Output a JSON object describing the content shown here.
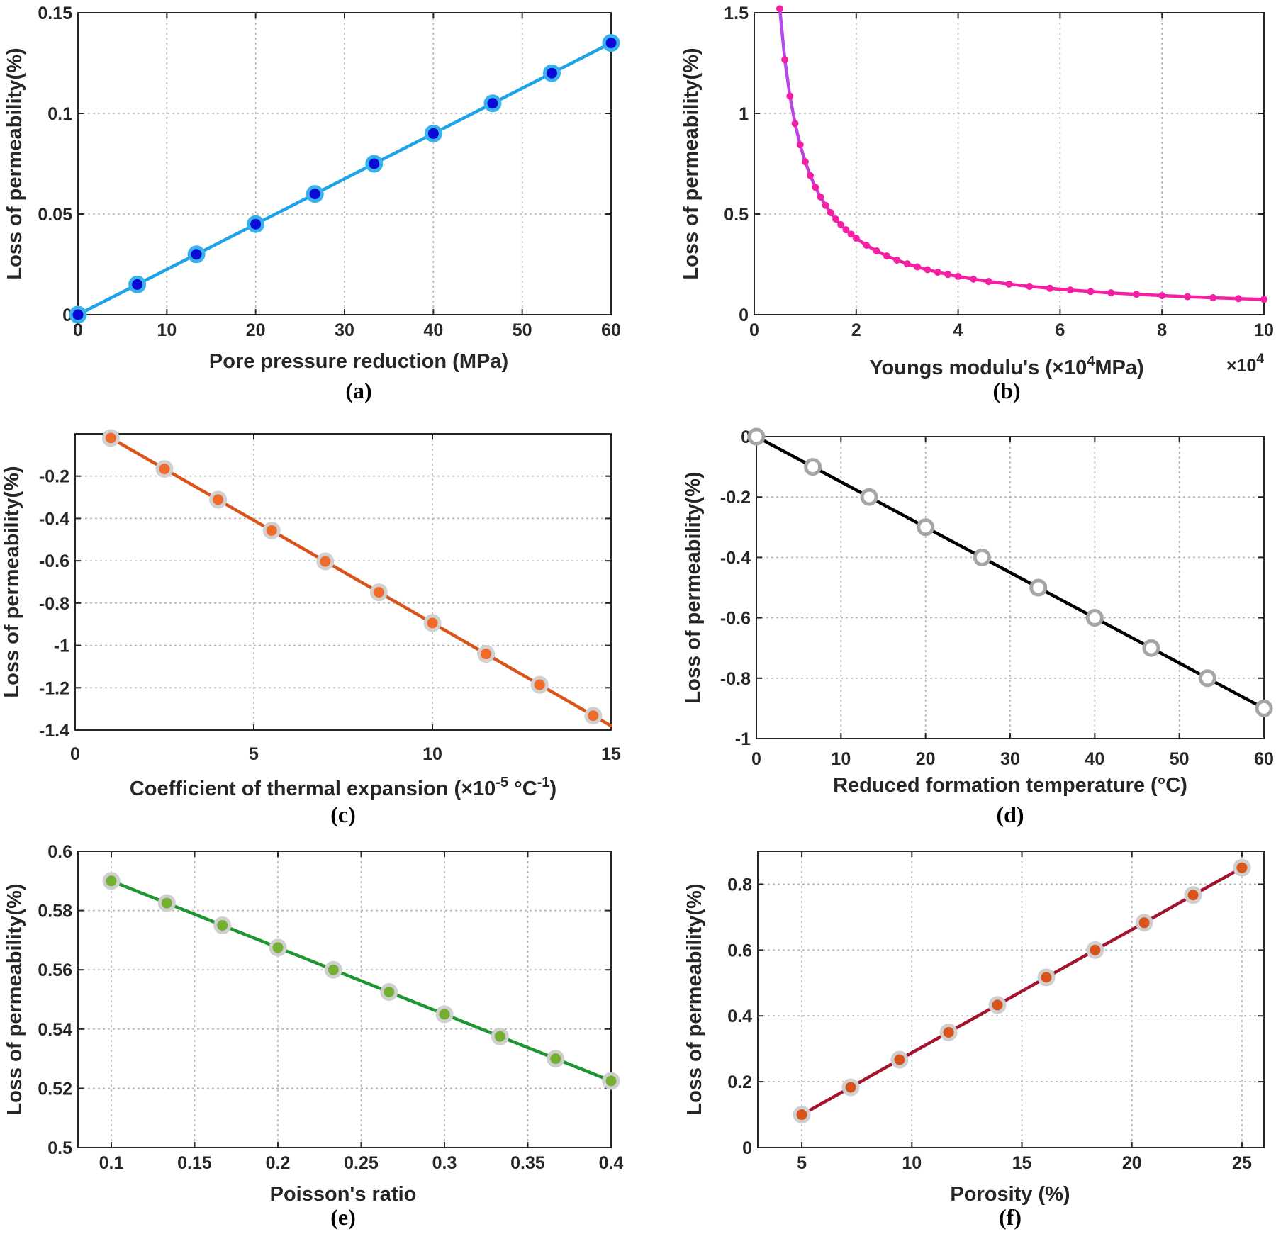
{
  "chart_data": [
    {
      "type": "line",
      "caption": "(a)",
      "xlabel": "Pore pressure reduction (MPa)",
      "ylabel": "Loss of permeability(%)",
      "xlim": [
        0,
        60
      ],
      "ylim": [
        0,
        0.15
      ],
      "xticks": [
        0,
        10,
        20,
        30,
        40,
        50,
        60
      ],
      "xtick_labels": [
        "0",
        "10",
        "20",
        "30",
        "40",
        "50",
        "60"
      ],
      "yticks": [
        0,
        0.05,
        0.1,
        0.15
      ],
      "ytick_labels": [
        "0",
        "0.05",
        "0.1",
        "0.15"
      ],
      "grid": true,
      "line_color": "#1fa3e8",
      "marker_face": "#0a0ad6",
      "marker_edge": "#37b2ec",
      "x": [
        0,
        6.67,
        13.33,
        20,
        26.67,
        33.33,
        40,
        46.67,
        53.33,
        60
      ],
      "y": [
        0,
        0.015,
        0.03,
        0.045,
        0.06,
        0.075,
        0.09,
        0.105,
        0.12,
        0.135
      ]
    },
    {
      "type": "line",
      "caption": "(b)",
      "xlabel_main": "Youngs modulu's (×10",
      "xlabel_sup": "4",
      "xlabel_tail": "MPa)",
      "x_multiplier_main": "×10",
      "x_multiplier_sup": "4",
      "ylabel": "Loss of permeability(%)",
      "xlim": [
        0,
        10
      ],
      "ylim": [
        0,
        1.5
      ],
      "xticks": [
        0,
        2,
        4,
        6,
        8,
        10
      ],
      "xtick_labels": [
        "0",
        "2",
        "4",
        "6",
        "8",
        "10"
      ],
      "yticks": [
        0,
        0.5,
        1,
        1.5
      ],
      "ytick_labels": [
        "0",
        "0.5",
        "1",
        "1.5"
      ],
      "grid": true,
      "line_color_start": "#b04cf0",
      "line_color_end": "#f51fa3",
      "marker_face": "#f51fa3",
      "curve": "y = 0.76 / x",
      "x": [
        0.5,
        0.6,
        0.7,
        0.8,
        0.9,
        1.0,
        1.1,
        1.2,
        1.3,
        1.4,
        1.5,
        1.6,
        1.7,
        1.8,
        1.9,
        2.0,
        2.2,
        2.4,
        2.6,
        2.8,
        3.0,
        3.2,
        3.4,
        3.6,
        3.8,
        4.0,
        4.3,
        4.6,
        5.0,
        5.4,
        5.8,
        6.2,
        6.6,
        7.0,
        7.5,
        8.0,
        8.5,
        9.0,
        9.5,
        10.0
      ],
      "y": [
        1.52,
        1.267,
        1.086,
        0.95,
        0.844,
        0.76,
        0.691,
        0.633,
        0.585,
        0.543,
        0.507,
        0.475,
        0.447,
        0.422,
        0.4,
        0.38,
        0.345,
        0.317,
        0.292,
        0.271,
        0.253,
        0.2375,
        0.2235,
        0.211,
        0.2,
        0.19,
        0.1767,
        0.1652,
        0.152,
        0.1407,
        0.131,
        0.1226,
        0.1152,
        0.1086,
        0.1013,
        0.095,
        0.0894,
        0.0844,
        0.08,
        0.076
      ]
    },
    {
      "type": "line",
      "caption": "(c)",
      "xlabel_main": "Coefficient of thermal expansion (×10",
      "xlabel_sup1": "-5",
      "xlabel_mid": " °C",
      "xlabel_sup2": "-1",
      "xlabel_tail": ")",
      "ylabel": "Loss of permeability(%)",
      "xlim": [
        0,
        15
      ],
      "ylim": [
        -1.4,
        0
      ],
      "xticks": [
        0,
        5,
        10,
        15
      ],
      "xtick_labels": [
        "0",
        "5",
        "10",
        "15"
      ],
      "yticks": [
        -1.4,
        -1.2,
        -1,
        -0.8,
        -0.6,
        -0.4,
        -0.2
      ],
      "ytick_labels": [
        "-1.4",
        "-1.2",
        "-1",
        "-0.8",
        "-0.6",
        "-0.4",
        "-0.2"
      ],
      "grid": true,
      "line_color": "#d9541a",
      "marker_face": "#f06a2a",
      "marker_edge": "#d0d0d0",
      "line_x": [
        1,
        15
      ],
      "line_y": [
        -0.02,
        -1.38
      ],
      "x": [
        1,
        2.5,
        4,
        5.5,
        7,
        8.5,
        10,
        11.5,
        13,
        14.5
      ],
      "y": [
        -0.02,
        -0.166,
        -0.311,
        -0.457,
        -0.603,
        -0.749,
        -0.894,
        -1.04,
        -1.186,
        -1.332
      ]
    },
    {
      "type": "line",
      "caption": "(d)",
      "xlabel": "Reduced formation temperature (°C)",
      "ylabel": "Loss of permeability(%)",
      "xlim": [
        0,
        60
      ],
      "ylim": [
        -1,
        0
      ],
      "xticks": [
        0,
        10,
        20,
        30,
        40,
        50,
        60
      ],
      "xtick_labels": [
        "0",
        "10",
        "20",
        "30",
        "40",
        "50",
        "60"
      ],
      "yticks": [
        -1,
        -0.8,
        -0.6,
        -0.4,
        -0.2,
        0
      ],
      "ytick_labels": [
        "-1",
        "-0.8",
        "-0.6",
        "-0.4",
        "-0.2",
        "0"
      ],
      "grid": true,
      "line_color": "#000000",
      "marker_face": "#ffffff",
      "marker_edge": "#a6a6a6",
      "x": [
        0,
        6.67,
        13.33,
        20,
        26.67,
        33.33,
        40,
        46.67,
        53.33,
        60
      ],
      "y": [
        0,
        -0.1,
        -0.2,
        -0.3,
        -0.4,
        -0.5,
        -0.6,
        -0.7,
        -0.8,
        -0.9
      ]
    },
    {
      "type": "line",
      "caption": "(e)",
      "xlabel": "Poisson's ratio",
      "ylabel": "Loss of permeability(%)",
      "xlim": [
        0.08,
        0.4
      ],
      "ylim": [
        0.5,
        0.6
      ],
      "xticks": [
        0.1,
        0.15,
        0.2,
        0.25,
        0.3,
        0.35,
        0.4
      ],
      "xtick_labels": [
        "0.1",
        "0.15",
        "0.2",
        "0.25",
        "0.3",
        "0.35",
        "0.4"
      ],
      "yticks": [
        0.5,
        0.52,
        0.54,
        0.56,
        0.58,
        0.6
      ],
      "ytick_labels": [
        "0.5",
        "0.52",
        "0.54",
        "0.56",
        "0.58",
        "0.6"
      ],
      "grid": true,
      "line_color": "#1e9632",
      "marker_face": "#73b032",
      "marker_edge": "#cfcfcf",
      "x": [
        0.1,
        0.1333,
        0.1667,
        0.2,
        0.2333,
        0.2667,
        0.3,
        0.3333,
        0.3667,
        0.4
      ],
      "y": [
        0.59,
        0.5825,
        0.575,
        0.5675,
        0.56,
        0.5525,
        0.545,
        0.5375,
        0.53,
        0.5225
      ]
    },
    {
      "type": "line",
      "caption": "(f)",
      "xlabel": "Porosity (%)",
      "ylabel": "Loss of permeability(%)",
      "xlim": [
        3,
        26
      ],
      "ylim": [
        0,
        0.9
      ],
      "xticks": [
        5,
        10,
        15,
        20,
        25
      ],
      "xtick_labels": [
        "5",
        "10",
        "15",
        "20",
        "25"
      ],
      "yticks": [
        0,
        0.2,
        0.4,
        0.6,
        0.8
      ],
      "ytick_labels": [
        "0",
        "0.2",
        "0.4",
        "0.6",
        "0.8"
      ],
      "grid": true,
      "line_color": "#a3142e",
      "marker_face": "#d9541a",
      "marker_edge": "#cfcfcf",
      "x": [
        5,
        7.22,
        9.44,
        11.67,
        13.89,
        16.11,
        18.33,
        20.56,
        22.78,
        25
      ],
      "y": [
        0.1,
        0.183,
        0.267,
        0.35,
        0.433,
        0.517,
        0.6,
        0.683,
        0.767,
        0.85
      ]
    }
  ]
}
